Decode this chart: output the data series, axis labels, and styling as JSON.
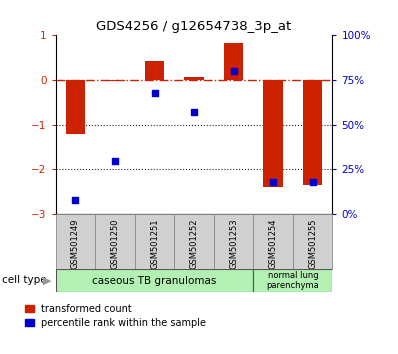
{
  "title": "GDS4256 / g12654738_3p_at",
  "samples": [
    "GSM501249",
    "GSM501250",
    "GSM501251",
    "GSM501252",
    "GSM501253",
    "GSM501254",
    "GSM501255"
  ],
  "red_bars": [
    -1.2,
    -0.02,
    0.42,
    0.07,
    0.82,
    -2.4,
    -2.35
  ],
  "blue_dot_pct": [
    8,
    30,
    68,
    57,
    80,
    18,
    18
  ],
  "ylim_left": [
    -3,
    1
  ],
  "yticks_left": [
    -3,
    -2,
    -1,
    0,
    1
  ],
  "yticks_right": [
    0,
    25,
    50,
    75,
    100
  ],
  "red_color": "#cc2200",
  "blue_color": "#0000cc",
  "hline_color": "#cc2200",
  "dotted_line_color": "#222222",
  "bar_width": 0.5,
  "legend_red": "transformed count",
  "legend_blue": "percentile rank within the sample",
  "cell_group1_label": "caseous TB granulomas",
  "cell_group2_label": "normal lung\nparenchyma",
  "cell_group1_n": 5,
  "cell_group2_n": 2,
  "cell_color": "#b3f0b3",
  "sample_box_color": "#d0d0d0"
}
